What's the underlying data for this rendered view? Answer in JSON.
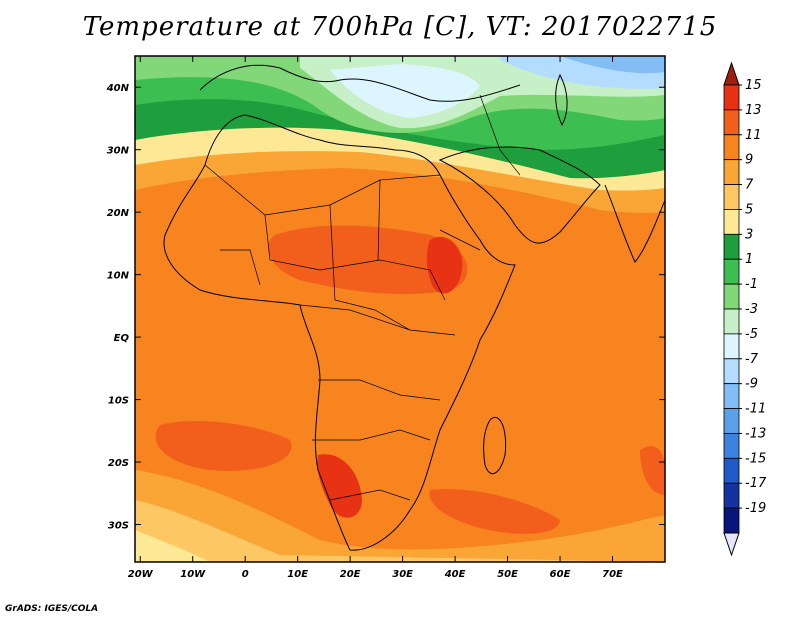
{
  "chart_data": {
    "type": "heatmap",
    "title": "Temperature at 700hPa [C], VT: 2017022715",
    "xlabel": "",
    "ylabel": "",
    "xlim": [
      -21,
      80
    ],
    "ylim": [
      -36,
      45
    ],
    "x_ticks": [
      {
        "value": -20,
        "label": "20W"
      },
      {
        "value": -10,
        "label": "10W"
      },
      {
        "value": 0,
        "label": "0"
      },
      {
        "value": 10,
        "label": "10E"
      },
      {
        "value": 20,
        "label": "20E"
      },
      {
        "value": 30,
        "label": "30E"
      },
      {
        "value": 40,
        "label": "40E"
      },
      {
        "value": 50,
        "label": "50E"
      },
      {
        "value": 60,
        "label": "60E"
      },
      {
        "value": 70,
        "label": "70E"
      }
    ],
    "y_ticks": [
      {
        "value": 40,
        "label": "40N"
      },
      {
        "value": 30,
        "label": "30N"
      },
      {
        "value": 20,
        "label": "20N"
      },
      {
        "value": 10,
        "label": "10N"
      },
      {
        "value": 0,
        "label": "EQ"
      },
      {
        "value": -10,
        "label": "10S"
      },
      {
        "value": -20,
        "label": "20S"
      },
      {
        "value": -30,
        "label": "30S"
      }
    ],
    "colorbar": {
      "labels": [
        "15",
        "13",
        "11",
        "9",
        "7",
        "5",
        "3",
        "1",
        "-1",
        "-3",
        "-5",
        "-7",
        "-9",
        "-11",
        "-13",
        "-15",
        "-17",
        "-19"
      ],
      "colors": [
        "#a01e0f",
        "#e83214",
        "#f25f1c",
        "#f7841f",
        "#faa637",
        "#fdc864",
        "#fde896",
        "#1e9e3c",
        "#3cbe50",
        "#82d779",
        "#c8f0c8",
        "#dcf5ff",
        "#b4dcff",
        "#82bef5",
        "#5aa0eb",
        "#3c82e1",
        "#1e5ac8",
        "#1432a0",
        "#0a147d",
        "#e6e6ff"
      ],
      "extend": "both"
    },
    "grid": false
  },
  "footer": "GrADS: IGES/COLA"
}
